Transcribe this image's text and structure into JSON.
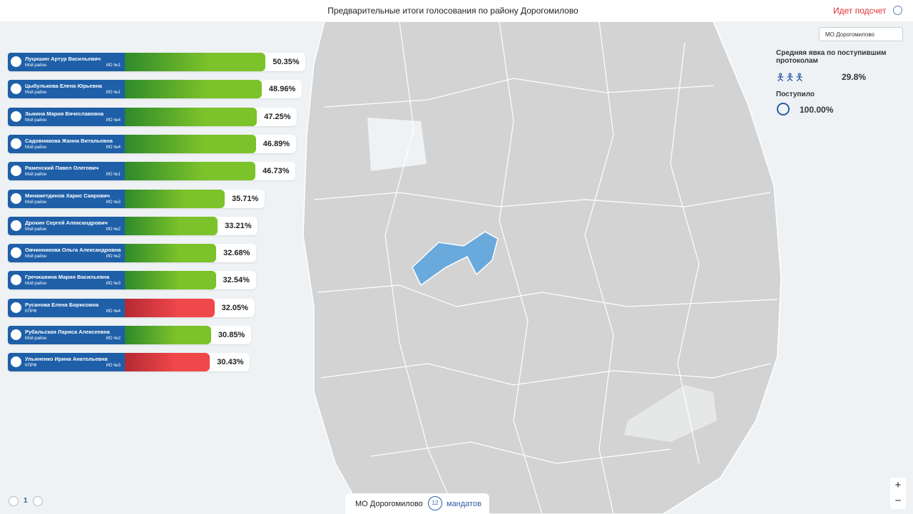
{
  "header": {
    "title": "Предварительные итоги голосования по району Дорогомилово",
    "status": "Идет подсчет"
  },
  "district_select": "МО Дорогомилово",
  "candidates": [
    {
      "name": "Луцишин Артур Васильевич",
      "party": "Мой район",
      "district": "ИО №1",
      "percent": 50.35,
      "percent_label": "50.35%",
      "color": "#7cc22a"
    },
    {
      "name": "Цыбулькова Елена Юрьевна",
      "party": "Мой район",
      "district": "ИО №1",
      "percent": 48.96,
      "percent_label": "48.96%",
      "color": "#7cc22a"
    },
    {
      "name": "Зыкина Мария Вячеславовна",
      "party": "Мой район",
      "district": "ИО №4",
      "percent": 47.25,
      "percent_label": "47.25%",
      "color": "#7cc22a"
    },
    {
      "name": "Садовникова Жанна Витальевна",
      "party": "Мой район",
      "district": "ИО №4",
      "percent": 46.89,
      "percent_label": "46.89%",
      "color": "#7cc22a"
    },
    {
      "name": "Раменский Павел Олегович",
      "party": "Мой район",
      "district": "ИО №1",
      "percent": 46.73,
      "percent_label": "46.73%",
      "color": "#7cc22a"
    },
    {
      "name": "Минажетдинов Харис Саярович",
      "party": "Мой район",
      "district": "ИО №3",
      "percent": 35.71,
      "percent_label": "35.71%",
      "color": "#7cc22a"
    },
    {
      "name": "Дрокин Сергей Александрович",
      "party": "Мой район",
      "district": "ИО №2",
      "percent": 33.21,
      "percent_label": "33.21%",
      "color": "#7cc22a"
    },
    {
      "name": "Овчинникова Ольга Александровна",
      "party": "Мой район",
      "district": "ИО №2",
      "percent": 32.68,
      "percent_label": "32.68%",
      "color": "#7cc22a"
    },
    {
      "name": "Гречишкина Мария Васильевна",
      "party": "Мой район",
      "district": "ИО №3",
      "percent": 32.54,
      "percent_label": "32.54%",
      "color": "#7cc22a"
    },
    {
      "name": "Русанова Елена Борисовна",
      "party": "КПРФ",
      "district": "ИО №4",
      "percent": 32.05,
      "percent_label": "32.05%",
      "color": "#f0474a"
    },
    {
      "name": "Рубальская Лариса Алексеевна",
      "party": "Мой район",
      "district": "ИО №2",
      "percent": 30.85,
      "percent_label": "30.85%",
      "color": "#7cc22a"
    },
    {
      "name": "Ульяненко Ирина Анатольевна",
      "party": "КПРФ",
      "district": "ИО №3",
      "percent": 30.43,
      "percent_label": "30.43%",
      "color": "#f0474a"
    }
  ],
  "turnout": {
    "title": "Средняя явка по поступившим протоколам",
    "value": 29.8,
    "label": "29.8%"
  },
  "received": {
    "title": "Поступило",
    "value": 100,
    "label": "100.00%"
  },
  "footer": {
    "district": "МО Дорогомилово",
    "mandates": 12,
    "mandates_label": "мандатов",
    "page": 1
  },
  "zoom": {
    "in": "+",
    "out": "−"
  }
}
